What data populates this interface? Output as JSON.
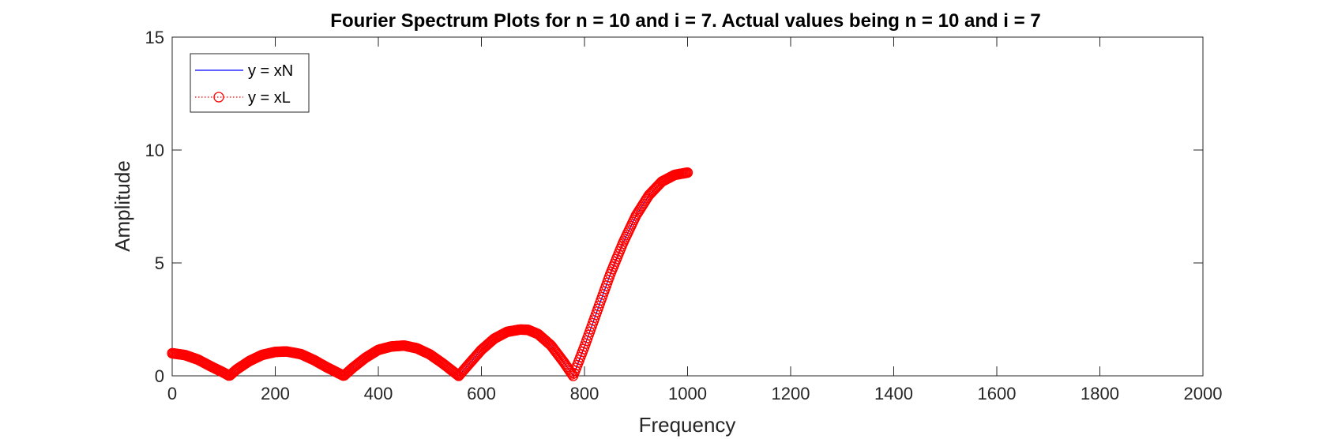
{
  "chart_data": {
    "type": "line",
    "title": "Fourier Spectrum Plots for n = 10 and i = 7. Actual values being n = 10 and i = 7",
    "xlabel": "Frequency",
    "ylabel": "Amplitude",
    "xlim": [
      0,
      2000
    ],
    "ylim": [
      0,
      15
    ],
    "xticks": [
      0,
      200,
      400,
      600,
      800,
      1000,
      1200,
      1400,
      1600,
      1800,
      2000
    ],
    "yticks": [
      0,
      5,
      10,
      15
    ],
    "grid": false,
    "legend_position": "top-left",
    "series": [
      {
        "name": "y = xN",
        "style": "solid-line",
        "color": "#0000ff",
        "x": [
          0,
          25,
          50,
          75,
          100,
          111,
          125,
          150,
          175,
          200,
          222,
          250,
          275,
          300,
          333,
          350,
          375,
          400,
          425,
          450,
          475,
          500,
          525,
          556,
          575,
          600,
          625,
          650,
          675,
          690,
          710,
          735,
          760,
          778,
          800,
          825,
          850,
          875,
          900,
          925,
          950,
          975,
          1000
        ],
        "y": [
          1.0,
          0.92,
          0.72,
          0.42,
          0.14,
          0.0,
          0.28,
          0.66,
          0.93,
          1.06,
          1.08,
          0.96,
          0.7,
          0.38,
          0.0,
          0.35,
          0.8,
          1.15,
          1.3,
          1.34,
          1.22,
          0.95,
          0.55,
          0.0,
          0.5,
          1.15,
          1.65,
          1.95,
          2.05,
          2.04,
          1.85,
          1.35,
          0.6,
          0.0,
          1.3,
          2.9,
          4.5,
          5.9,
          7.1,
          8.0,
          8.6,
          8.9,
          9.0
        ]
      },
      {
        "name": "y = xL",
        "style": "dotted-circle-markers",
        "color": "#ff0000",
        "x": [
          0,
          25,
          50,
          75,
          100,
          111,
          125,
          150,
          175,
          200,
          222,
          250,
          275,
          300,
          333,
          350,
          375,
          400,
          425,
          450,
          475,
          500,
          525,
          556,
          575,
          600,
          625,
          650,
          675,
          690,
          710,
          735,
          760,
          778,
          800,
          825,
          850,
          875,
          900,
          925,
          950,
          975,
          1000
        ],
        "y": [
          1.0,
          0.92,
          0.72,
          0.42,
          0.14,
          0.0,
          0.28,
          0.66,
          0.93,
          1.06,
          1.08,
          0.96,
          0.7,
          0.38,
          0.0,
          0.35,
          0.8,
          1.15,
          1.3,
          1.34,
          1.22,
          0.95,
          0.55,
          0.0,
          0.5,
          1.15,
          1.65,
          1.95,
          2.05,
          2.04,
          1.85,
          1.35,
          0.6,
          0.0,
          1.3,
          2.9,
          4.5,
          5.9,
          7.1,
          8.0,
          8.6,
          8.9,
          9.0
        ]
      }
    ]
  }
}
